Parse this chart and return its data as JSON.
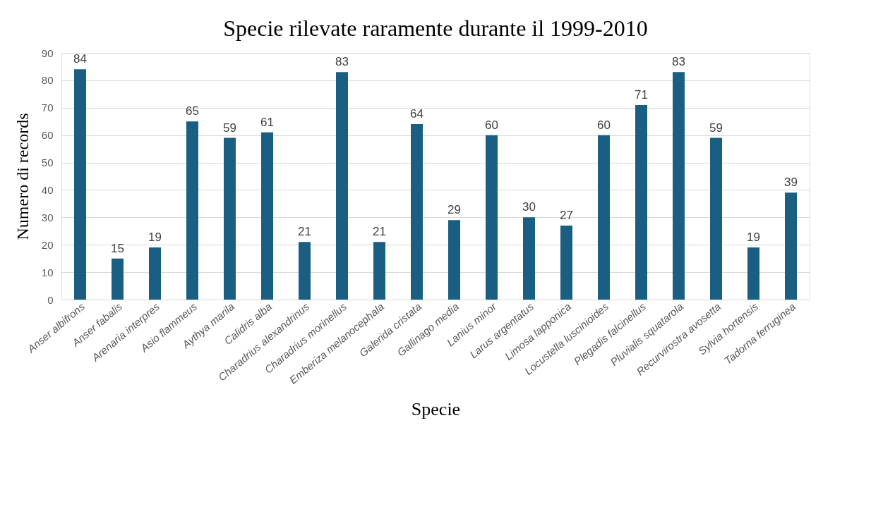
{
  "chart_data": {
    "type": "bar",
    "title": "Specie rilevate raramente durante il 1999-2010",
    "xlabel": "Specie",
    "ylabel": "Numero di records",
    "categories": [
      "Anser albifrons",
      "Anser fabalis",
      "Arenaria interpres",
      "Asio flammeus",
      "Aythya marila",
      "Calidris alba",
      "Charadrius alexandrinus",
      "Charadrius morinellus",
      "Emberiza melanocephala",
      "Galerida cristata",
      "Gallinago media",
      "Lanius minor",
      "Larus argentatus",
      "Limosa lapponica",
      "Locustella luscinioides",
      "Plegadis falcinellus",
      "Pluvialis squatarola",
      "Recurvirostra avosetta",
      "Sylvia hortensis",
      "Tadorna ferruginea"
    ],
    "values": [
      84,
      15,
      19,
      65,
      59,
      61,
      21,
      83,
      21,
      64,
      29,
      60,
      30,
      27,
      60,
      71,
      83,
      59,
      19,
      39
    ],
    "color": "#1a5f82",
    "ylim": [
      0,
      90
    ],
    "yticks": [
      0,
      10,
      20,
      30,
      40,
      50,
      60,
      70,
      80,
      90
    ],
    "grid": "y",
    "data_labels": true
  }
}
